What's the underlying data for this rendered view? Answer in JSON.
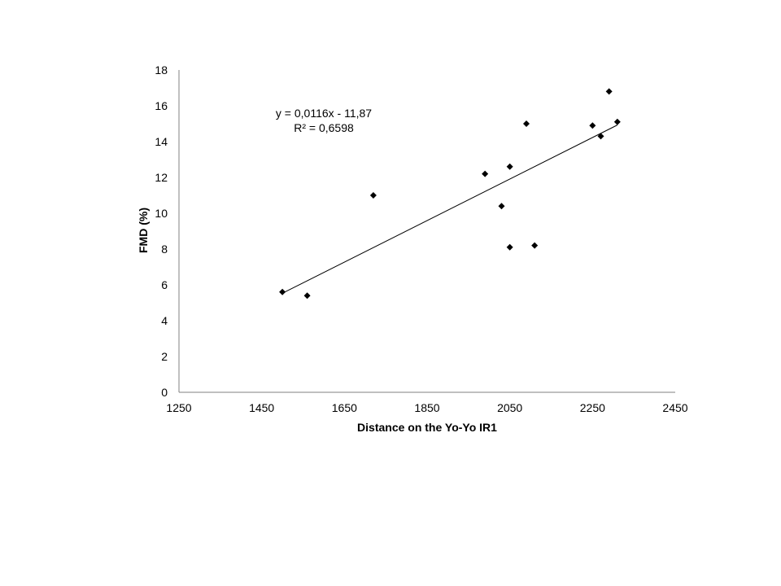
{
  "chart_data": {
    "type": "scatter",
    "title": "",
    "xlabel": "Distance on the Yo-Yo IR1",
    "ylabel": "FMD (%)",
    "xlim": [
      1250,
      2450
    ],
    "ylim": [
      0,
      18
    ],
    "x_ticks": [
      "1250",
      "1450",
      "1650",
      "1850",
      "2050",
      "2250",
      "2450"
    ],
    "y_ticks": [
      "0",
      "2",
      "4",
      "6",
      "8",
      "10",
      "12",
      "14",
      "16",
      "18"
    ],
    "grid": false,
    "legend": "none",
    "marker": "diamond",
    "marker_color": "#000000",
    "axis_color": "#808080",
    "series": [
      {
        "points": [
          {
            "x": 1500,
            "y": 5.6
          },
          {
            "x": 1560,
            "y": 5.4
          },
          {
            "x": 1720,
            "y": 11.0
          },
          {
            "x": 1990,
            "y": 12.2
          },
          {
            "x": 2030,
            "y": 10.4
          },
          {
            "x": 2050,
            "y": 12.6
          },
          {
            "x": 2050,
            "y": 8.1
          },
          {
            "x": 2090,
            "y": 15.0
          },
          {
            "x": 2110,
            "y": 8.2
          },
          {
            "x": 2250,
            "y": 14.9
          },
          {
            "x": 2270,
            "y": 14.3
          },
          {
            "x": 2290,
            "y": 16.8
          },
          {
            "x": 2310,
            "y": 15.1
          }
        ]
      }
    ],
    "trendline": {
      "slope": 0.0116,
      "intercept": -11.87,
      "x_range": [
        1500,
        2310
      ]
    },
    "annotations": {
      "equation": "y = 0,0116x - 11,87",
      "r_squared": "R² = 0,6598"
    }
  }
}
